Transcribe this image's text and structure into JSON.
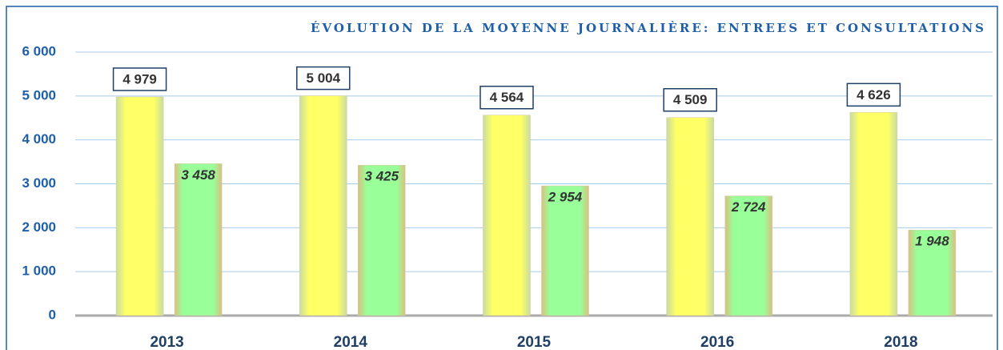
{
  "chart_data": {
    "type": "bar",
    "title": "ÉVOLUTION DE LA MOYENNE JOURNALIÈRE: ENTREES ET CONSULTATIONS",
    "categories": [
      "2013",
      "2014",
      "2015",
      "2016",
      "2018"
    ],
    "series": [
      {
        "color": "#ffff66",
        "values": [
          4979,
          5004,
          4564,
          4509,
          4626
        ],
        "value_labels": [
          "4 979",
          "5 004",
          "4 564",
          "4 509",
          "4 626"
        ]
      },
      {
        "color": "#99ff99",
        "values": [
          3458,
          3425,
          2954,
          2724,
          1948
        ],
        "value_labels": [
          "3 458",
          "3 425",
          "2 954",
          "2 724",
          "1 948"
        ]
      }
    ],
    "ylim": [
      0,
      6000
    ],
    "yticks": [
      0,
      {
        "value": 1000,
        "label": "1 000"
      },
      {
        "value": 2000,
        "label": "2 000"
      },
      {
        "value": 3000,
        "label": "3 000"
      },
      {
        "value": 4000,
        "label": "4 000"
      },
      {
        "value": 5000,
        "label": "5 000"
      },
      {
        "value": 6000,
        "label": "6 000"
      }
    ],
    "grid": true
  }
}
